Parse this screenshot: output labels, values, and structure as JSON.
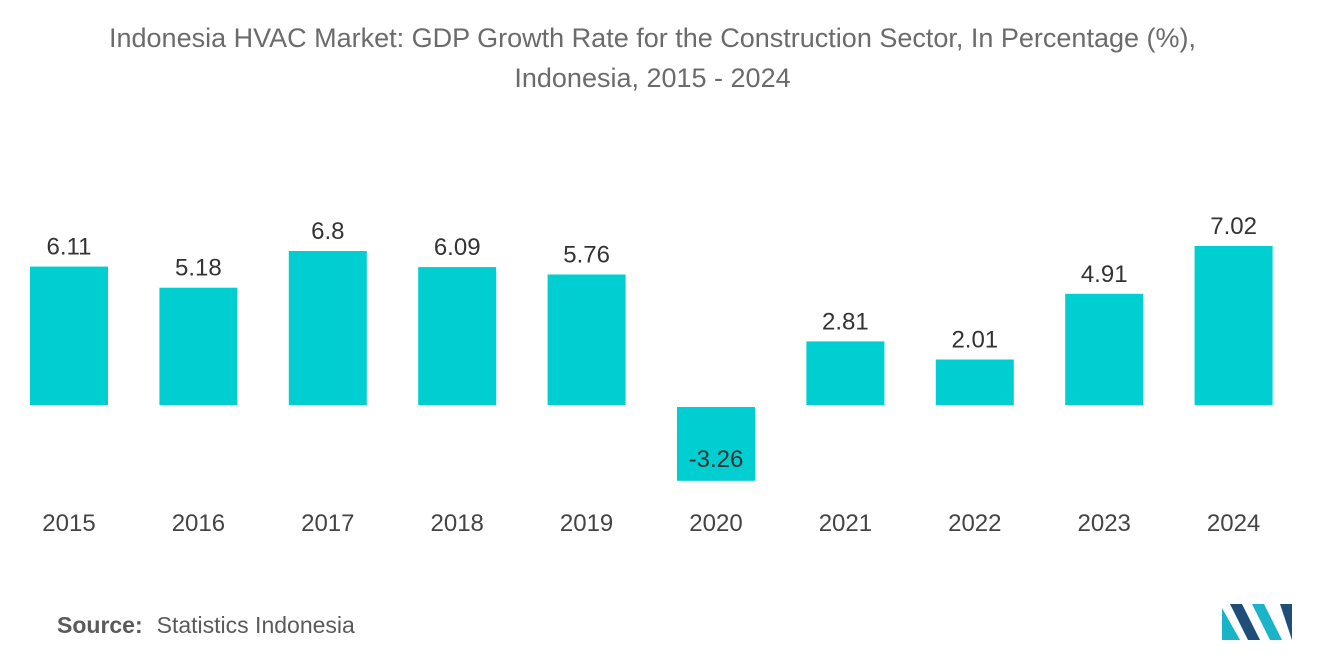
{
  "title_line1": "Indonesia HVAC Market: GDP Growth Rate for the Construction Sector, In Percentage (%),",
  "title_line2": "Indonesia, 2015 - 2024",
  "source_label": "Source:",
  "source_value": "Statistics Indonesia",
  "logo_icon": "mordor-intelligence-logo-icon",
  "colors": {
    "bar": "#00CED1",
    "logo_dark": "#1f4e79",
    "logo_teal": "#1ab3c8"
  },
  "chart_data": {
    "type": "bar",
    "title": "Indonesia HVAC Market: GDP Growth Rate for the Construction Sector, In Percentage (%), Indonesia, 2015 - 2024",
    "xlabel": "",
    "ylabel": "",
    "categories": [
      "2015",
      "2016",
      "2017",
      "2018",
      "2019",
      "2020",
      "2021",
      "2022",
      "2023",
      "2024"
    ],
    "values": [
      6.11,
      5.18,
      6.8,
      6.09,
      5.76,
      -3.26,
      2.81,
      2.01,
      4.91,
      7.02
    ],
    "value_labels": [
      "6.11",
      "5.18",
      "6.8",
      "6.09",
      "5.76",
      "-3.26",
      "2.81",
      "2.01",
      "4.91",
      "7.02"
    ],
    "ylim": [
      -3.26,
      7.02
    ],
    "grid": false,
    "legend": "none"
  }
}
